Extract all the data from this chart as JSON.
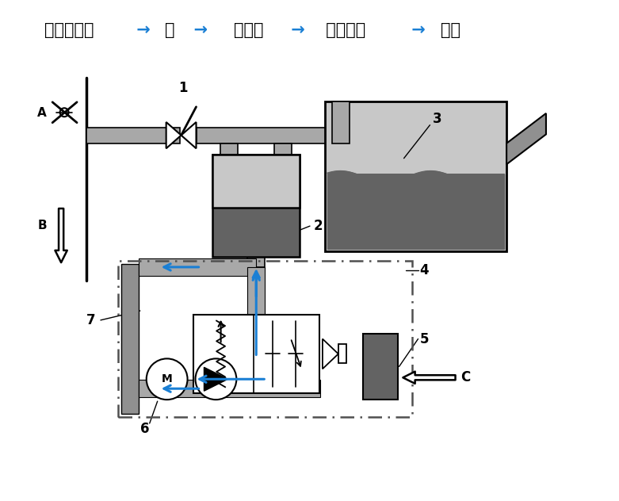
{
  "bg_color": "#ffffff",
  "gray_pipe": "#a8a8a8",
  "dark_gray": "#636363",
  "mid_gray": "#909090",
  "light_gray": "#c8c8c8",
  "blue_arrow": "#1a7fd4",
  "black": "#000000",
  "dashed_color": "#505050",
  "title_parts": [
    [
      "空气滤清器",
      "#000000"
    ],
    [
      " →",
      "#1a7fd4"
    ],
    [
      "泵",
      "#000000"
    ],
    [
      "  →",
      "#1a7fd4"
    ],
    [
      "转换阀",
      "#000000"
    ],
    [
      " →",
      "#1a7fd4"
    ],
    [
      " 活性炭罐",
      "#000000"
    ],
    [
      " →",
      "#1a7fd4"
    ],
    [
      "油箱",
      "#000000"
    ]
  ]
}
